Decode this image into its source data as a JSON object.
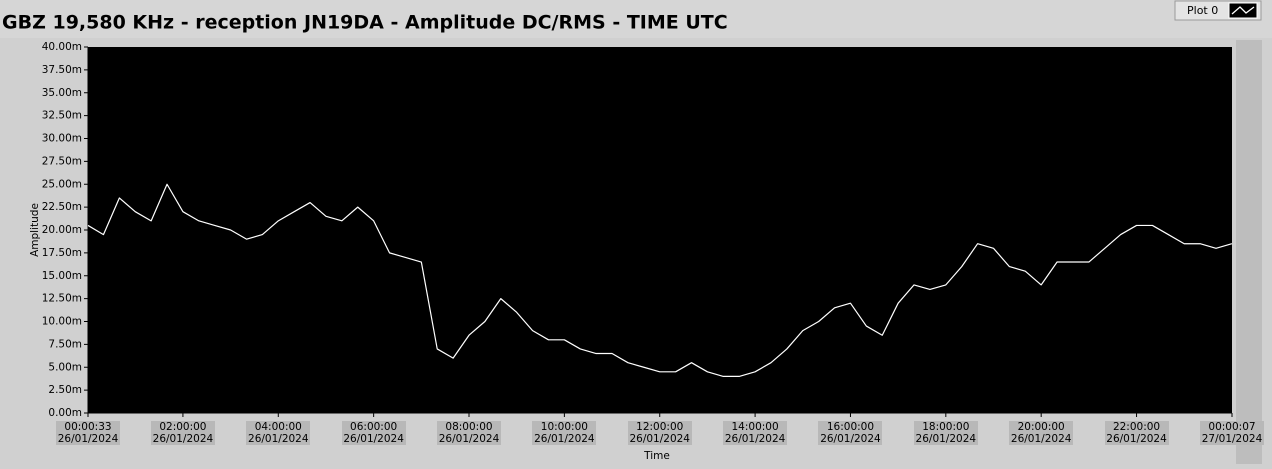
{
  "chart_data": {
    "type": "line",
    "title": "GBZ  19,580 KHz - reception JN19DA -  Amplitude DC/RMS   - TIME UTC",
    "y_label": "Amplitude",
    "x_label": "Time",
    "legend": "top-right",
    "grid": false,
    "background": "#000000",
    "ylim": [
      0,
      40
    ],
    "yticks": [
      {
        "value": 0,
        "label": "0.00m"
      },
      {
        "value": 2.5,
        "label": "2.50m"
      },
      {
        "value": 5,
        "label": "5.00m"
      },
      {
        "value": 7.5,
        "label": "7.50m"
      },
      {
        "value": 10,
        "label": "10.00m"
      },
      {
        "value": 12.5,
        "label": "12.50m"
      },
      {
        "value": 15,
        "label": "15.00m"
      },
      {
        "value": 17.5,
        "label": "17.50m"
      },
      {
        "value": 20,
        "label": "20.00m"
      },
      {
        "value": 22.5,
        "label": "22.50m"
      },
      {
        "value": 25,
        "label": "25.00m"
      },
      {
        "value": 27.5,
        "label": "27.50m"
      },
      {
        "value": 30,
        "label": "30.00m"
      },
      {
        "value": 32.5,
        "label": "32.50m"
      },
      {
        "value": 35,
        "label": "35.00m"
      },
      {
        "value": 37.5,
        "label": "37.50m"
      },
      {
        "value": 40,
        "label": "40.00m"
      }
    ],
    "xlim": [
      "2024-01-26T00:00:33",
      "2024-01-27T00:00:07"
    ],
    "xticks": [
      {
        "value": "2024-01-26T00:00:33",
        "label": "00:00:33\n26/01/2024"
      },
      {
        "value": "2024-01-26T02:00:00",
        "label": "02:00:00\n26/01/2024"
      },
      {
        "value": "2024-01-26T04:00:00",
        "label": "04:00:00\n26/01/2024"
      },
      {
        "value": "2024-01-26T06:00:00",
        "label": "06:00:00\n26/01/2024"
      },
      {
        "value": "2024-01-26T08:00:00",
        "label": "08:00:00\n26/01/2024"
      },
      {
        "value": "2024-01-26T10:00:00",
        "label": "10:00:00\n26/01/2024"
      },
      {
        "value": "2024-01-26T12:00:00",
        "label": "12:00:00\n26/01/2024"
      },
      {
        "value": "2024-01-26T14:00:00",
        "label": "14:00:00\n26/01/2024"
      },
      {
        "value": "2024-01-26T16:00:00",
        "label": "16:00:00\n26/01/2024"
      },
      {
        "value": "2024-01-26T18:00:00",
        "label": "18:00:00\n26/01/2024"
      },
      {
        "value": "2024-01-26T20:00:00",
        "label": "20:00:00\n26/01/2024"
      },
      {
        "value": "2024-01-26T22:00:00",
        "label": "22:00:00\n26/01/2024"
      },
      {
        "value": "2024-01-27T00:00:07",
        "label": "00:00:07\n27/01/2024"
      }
    ],
    "x": [
      "2024-01-26T00:00:33",
      "2024-01-26T00:20",
      "2024-01-26T00:40",
      "2024-01-26T01:00",
      "2024-01-26T01:20",
      "2024-01-26T01:40",
      "2024-01-26T02:00",
      "2024-01-26T02:20",
      "2024-01-26T02:40",
      "2024-01-26T03:00",
      "2024-01-26T03:20",
      "2024-01-26T03:40",
      "2024-01-26T04:00",
      "2024-01-26T04:20",
      "2024-01-26T04:40",
      "2024-01-26T05:00",
      "2024-01-26T05:20",
      "2024-01-26T05:40",
      "2024-01-26T06:00",
      "2024-01-26T06:20",
      "2024-01-26T06:40",
      "2024-01-26T07:00",
      "2024-01-26T07:20",
      "2024-01-26T07:40",
      "2024-01-26T08:00",
      "2024-01-26T08:20",
      "2024-01-26T08:40",
      "2024-01-26T09:00",
      "2024-01-26T09:20",
      "2024-01-26T09:40",
      "2024-01-26T10:00",
      "2024-01-26T10:20",
      "2024-01-26T10:40",
      "2024-01-26T11:00",
      "2024-01-26T11:20",
      "2024-01-26T11:40",
      "2024-01-26T12:00",
      "2024-01-26T12:20",
      "2024-01-26T12:40",
      "2024-01-26T13:00",
      "2024-01-26T13:20",
      "2024-01-26T13:40",
      "2024-01-26T14:00",
      "2024-01-26T14:20",
      "2024-01-26T14:40",
      "2024-01-26T15:00",
      "2024-01-26T15:20",
      "2024-01-26T15:40",
      "2024-01-26T16:00",
      "2024-01-26T16:20",
      "2024-01-26T16:40",
      "2024-01-26T17:00",
      "2024-01-26T17:20",
      "2024-01-26T17:40",
      "2024-01-26T18:00",
      "2024-01-26T18:20",
      "2024-01-26T18:40",
      "2024-01-26T19:00",
      "2024-01-26T19:20",
      "2024-01-26T19:40",
      "2024-01-26T20:00",
      "2024-01-26T20:20",
      "2024-01-26T20:40",
      "2024-01-26T21:00",
      "2024-01-26T21:20",
      "2024-01-26T21:40",
      "2024-01-26T22:00",
      "2024-01-26T22:20",
      "2024-01-26T22:40",
      "2024-01-26T23:00",
      "2024-01-26T23:20",
      "2024-01-26T23:40",
      "2024-01-27T00:00"
    ],
    "series": [
      {
        "name": "Plot 0",
        "color": "#ffffff",
        "values": [
          20.5,
          19.5,
          23.5,
          22,
          21,
          25,
          22,
          21,
          20.5,
          20,
          19,
          19.5,
          21,
          22,
          23,
          21.5,
          21,
          22.5,
          21,
          17.5,
          17,
          16.5,
          7,
          6,
          8.5,
          10,
          12.5,
          11,
          9,
          8,
          8,
          7,
          6.5,
          6.5,
          5.5,
          5,
          4.5,
          4.5,
          5.5,
          4.5,
          4,
          4,
          4.5,
          5.5,
          7,
          9,
          10,
          11.5,
          12,
          9.5,
          8.5,
          12,
          14,
          13.5,
          14,
          16,
          18.5,
          18,
          16,
          15.5,
          14,
          16.5,
          16.5,
          16.5,
          18,
          19.5,
          20.5,
          20.5,
          19.5,
          18.5,
          18.5,
          18,
          18.5
        ]
      }
    ]
  }
}
